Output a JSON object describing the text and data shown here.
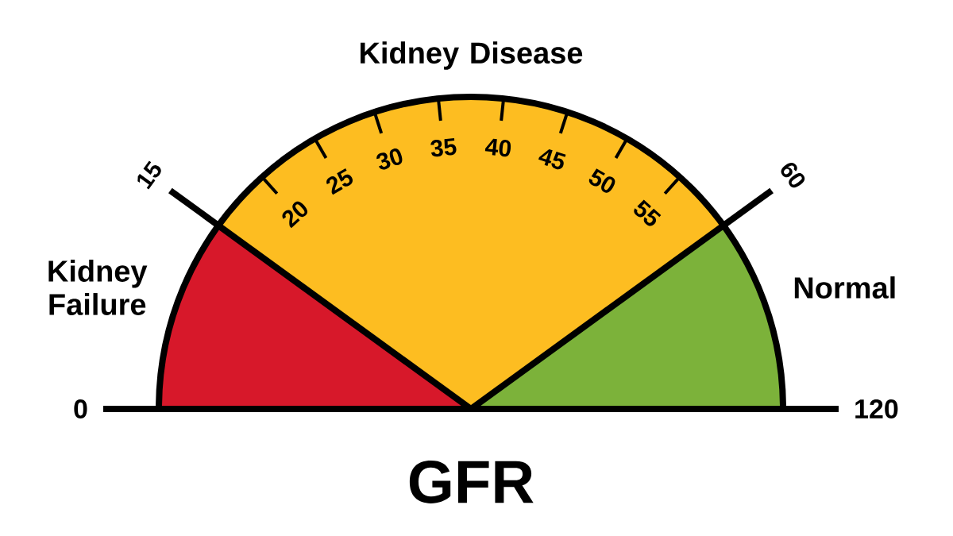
{
  "chart_data": {
    "type": "pie",
    "xlabel": "GFR",
    "categories": [
      "Kidney Failure",
      "Kidney Disease",
      "Normal"
    ],
    "values": [
      20,
      60,
      20
    ],
    "colors": [
      "#d7182a",
      "#fdbd21",
      "#7cb23a"
    ],
    "annotations": [
      "0",
      "15",
      "20",
      "25",
      "30",
      "35",
      "40",
      "45",
      "50",
      "55",
      "60",
      "120"
    ]
  }
}
